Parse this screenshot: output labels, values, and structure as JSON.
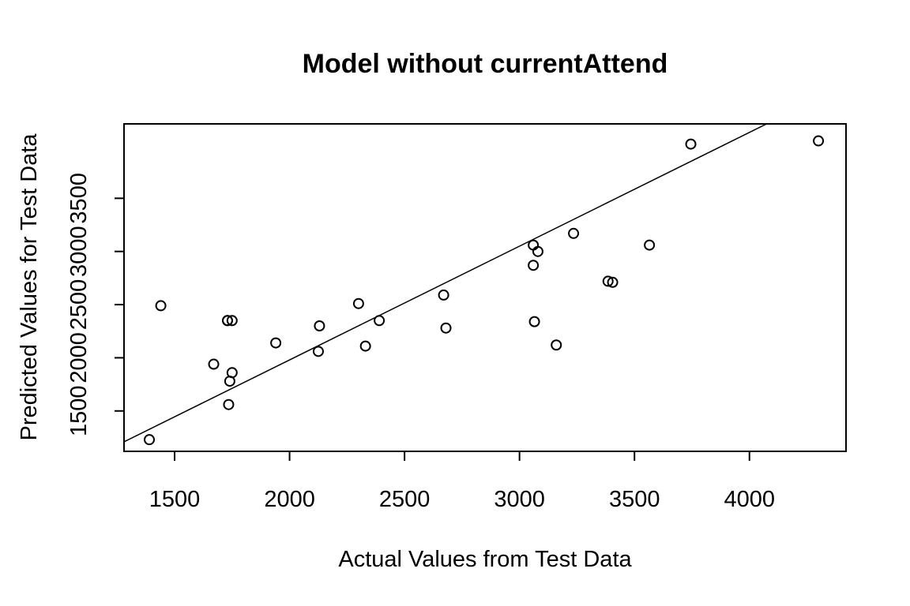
{
  "chart_data": {
    "type": "scatter",
    "title": "Model without currentAttend",
    "xlabel": "Actual Values from Test Data",
    "ylabel": "Predicted Values for Test Data",
    "xlim": [
      1280,
      4420
    ],
    "ylim": [
      1120,
      4200
    ],
    "xticks": [
      1500,
      2000,
      2500,
      3000,
      3500,
      4000
    ],
    "yticks": [
      1500,
      2000,
      2500,
      3000,
      3500
    ],
    "x": [
      1390,
      1440,
      1670,
      1730,
      1735,
      1740,
      1750,
      1750,
      1730,
      1940,
      2125,
      2130,
      2300,
      2330,
      2390,
      2670,
      2680,
      3060,
      3060,
      3065,
      3080,
      3160,
      3235,
      3385,
      3405,
      3565,
      3745,
      4300
    ],
    "y": [
      1230,
      2490,
      1940,
      2350,
      1560,
      1780,
      1860,
      2350,
      2350,
      2140,
      2060,
      2300,
      2510,
      2110,
      2350,
      2590,
      2280,
      3060,
      2870,
      2340,
      3000,
      2120,
      3170,
      2720,
      2710,
      3060,
      4010,
      4040
    ],
    "fit_line": {
      "intercept": -160,
      "slope": 1.07
    },
    "grid": false
  }
}
